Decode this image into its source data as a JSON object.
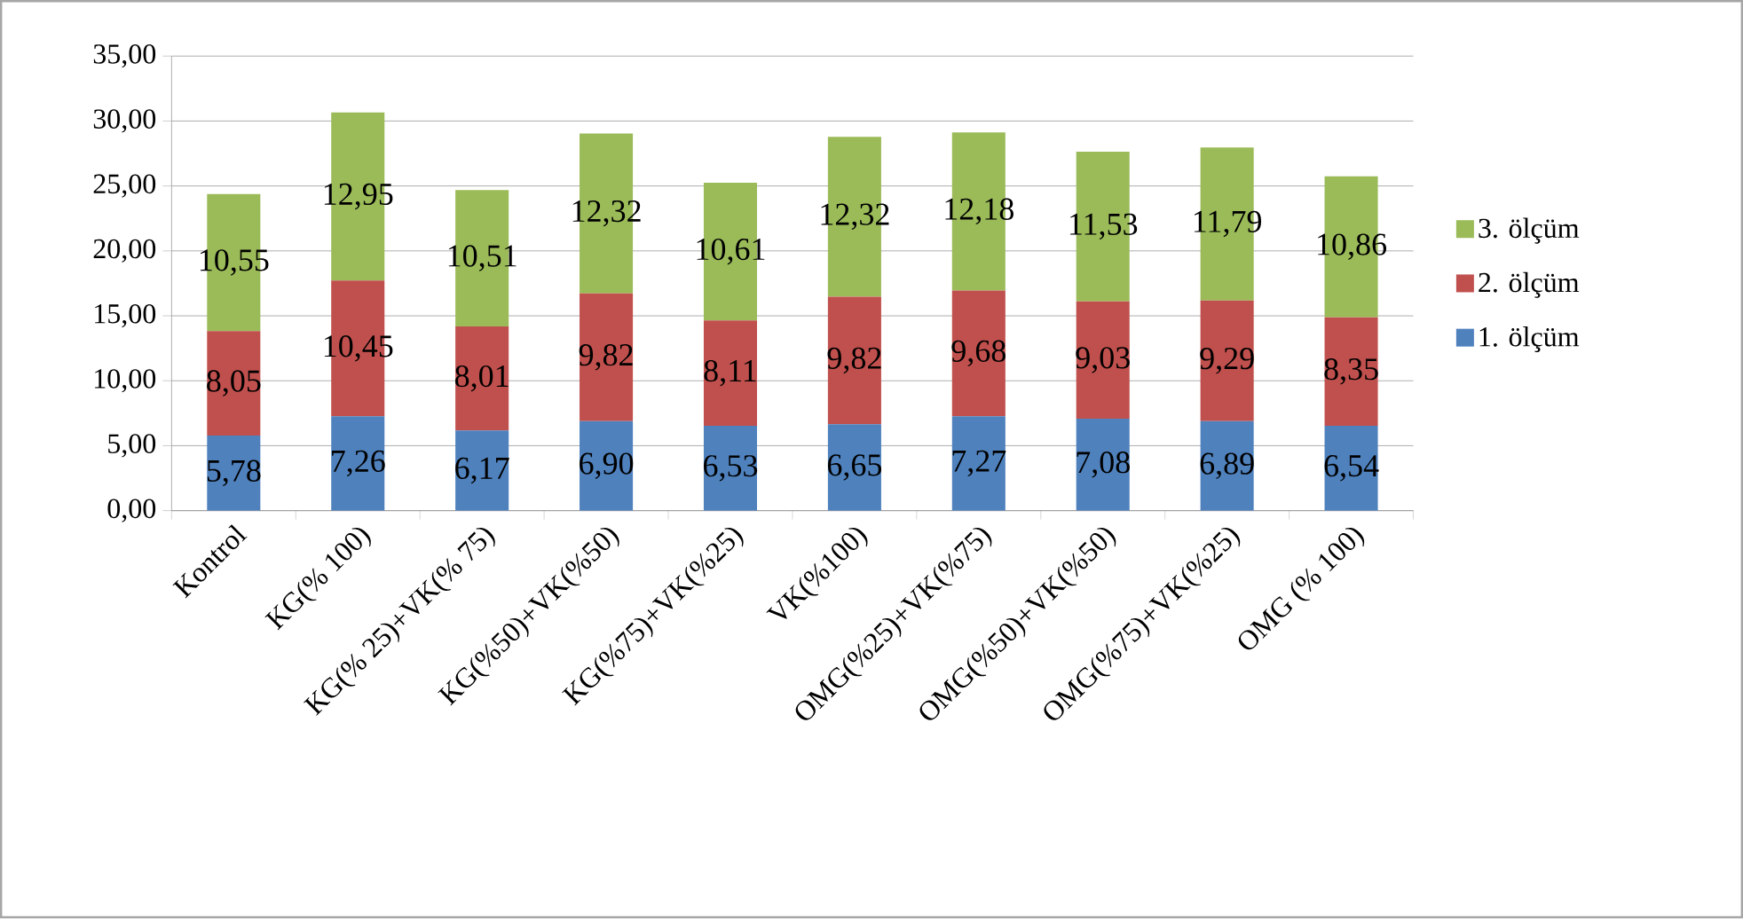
{
  "chart_data": {
    "type": "bar",
    "stacked": true,
    "categories": [
      "Kontrol",
      "KG(% 100)",
      "KG(% 25)+VK(% 75)",
      "KG(%50)+VK(%50)",
      "KG(%75)+VK(%25)",
      "VK(%100)",
      "OMG(%25)+VK(%75)",
      "OMG(%50)+VK(%50)",
      "OMG(%75)+VK(%25)",
      "OMG (% 100)"
    ],
    "series": [
      {
        "name": "1. ölçüm",
        "color": "#4f81bd",
        "values": [
          5.78,
          7.26,
          6.17,
          6.9,
          6.53,
          6.65,
          7.27,
          7.08,
          6.89,
          6.54
        ],
        "value_labels": [
          "5,78",
          "7,26",
          "6,17",
          "6,90",
          "6,53",
          "6,65",
          "7,27",
          "7,08",
          "6,89",
          "6,54"
        ]
      },
      {
        "name": "2. ölçüm",
        "color": "#c0504d",
        "values": [
          8.05,
          10.45,
          8.01,
          9.82,
          8.11,
          9.82,
          9.68,
          9.03,
          9.29,
          8.35
        ],
        "value_labels": [
          "8,05",
          "10,45",
          "8,01",
          "9,82",
          "8,11",
          "9,82",
          "9,68",
          "9,03",
          "9,29",
          "8,35"
        ]
      },
      {
        "name": "3. ölçüm",
        "color": "#9bbb59",
        "values": [
          10.55,
          12.95,
          10.51,
          12.32,
          10.61,
          12.32,
          12.18,
          11.53,
          11.79,
          10.86
        ],
        "value_labels": [
          "10,55",
          "12,95",
          "10,51",
          "12,32",
          "10,61",
          "12,32",
          "12,18",
          "11,53",
          "11,79",
          "10,86"
        ]
      }
    ],
    "ylim": [
      0,
      35
    ],
    "yticks": [
      {
        "value": 0,
        "label": "0,00"
      },
      {
        "value": 5,
        "label": "5,00"
      },
      {
        "value": 10,
        "label": "10,00"
      },
      {
        "value": 15,
        "label": "15,00"
      },
      {
        "value": 20,
        "label": "20,00"
      },
      {
        "value": 25,
        "label": "25,00"
      },
      {
        "value": 30,
        "label": "30,00"
      },
      {
        "value": 35,
        "label": "35,00"
      }
    ],
    "grid": "y",
    "legend": "right"
  }
}
